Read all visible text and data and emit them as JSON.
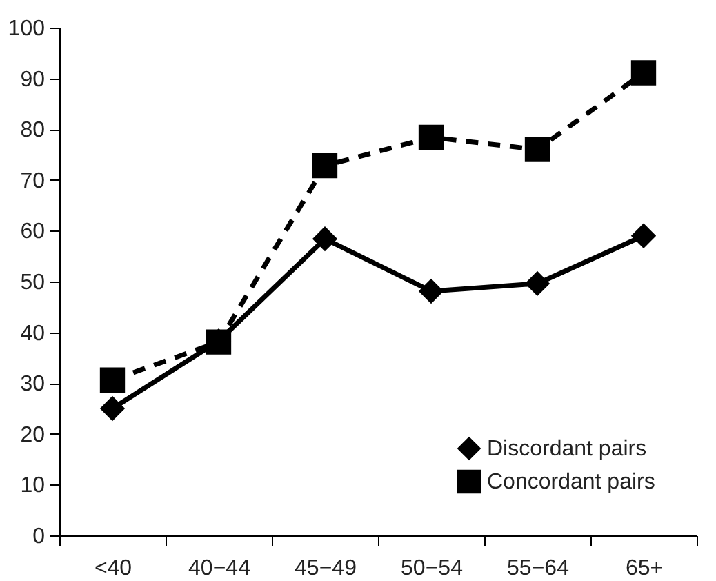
{
  "chart_data": {
    "type": "line",
    "categories": [
      "<40",
      "40−44",
      "45−49",
      "50−54",
      "55−64",
      "65+"
    ],
    "series": [
      {
        "name": "Discordant pairs",
        "color": "#000000",
        "marker": "diamond",
        "line_style": "solid",
        "values": [
          25,
          38.3,
          58.4,
          48.1,
          49.6,
          59
        ]
      },
      {
        "name": "Concordant pairs",
        "color": "#000000",
        "marker": "square",
        "line_style": "dashed",
        "values": [
          30.6,
          38.1,
          72.8,
          78.4,
          76,
          91.1
        ]
      }
    ],
    "ylim": [
      0,
      100
    ],
    "yticks": [
      0,
      10,
      20,
      30,
      40,
      50,
      60,
      70,
      80,
      90,
      100
    ],
    "grid": false,
    "legend": "bottom right"
  }
}
